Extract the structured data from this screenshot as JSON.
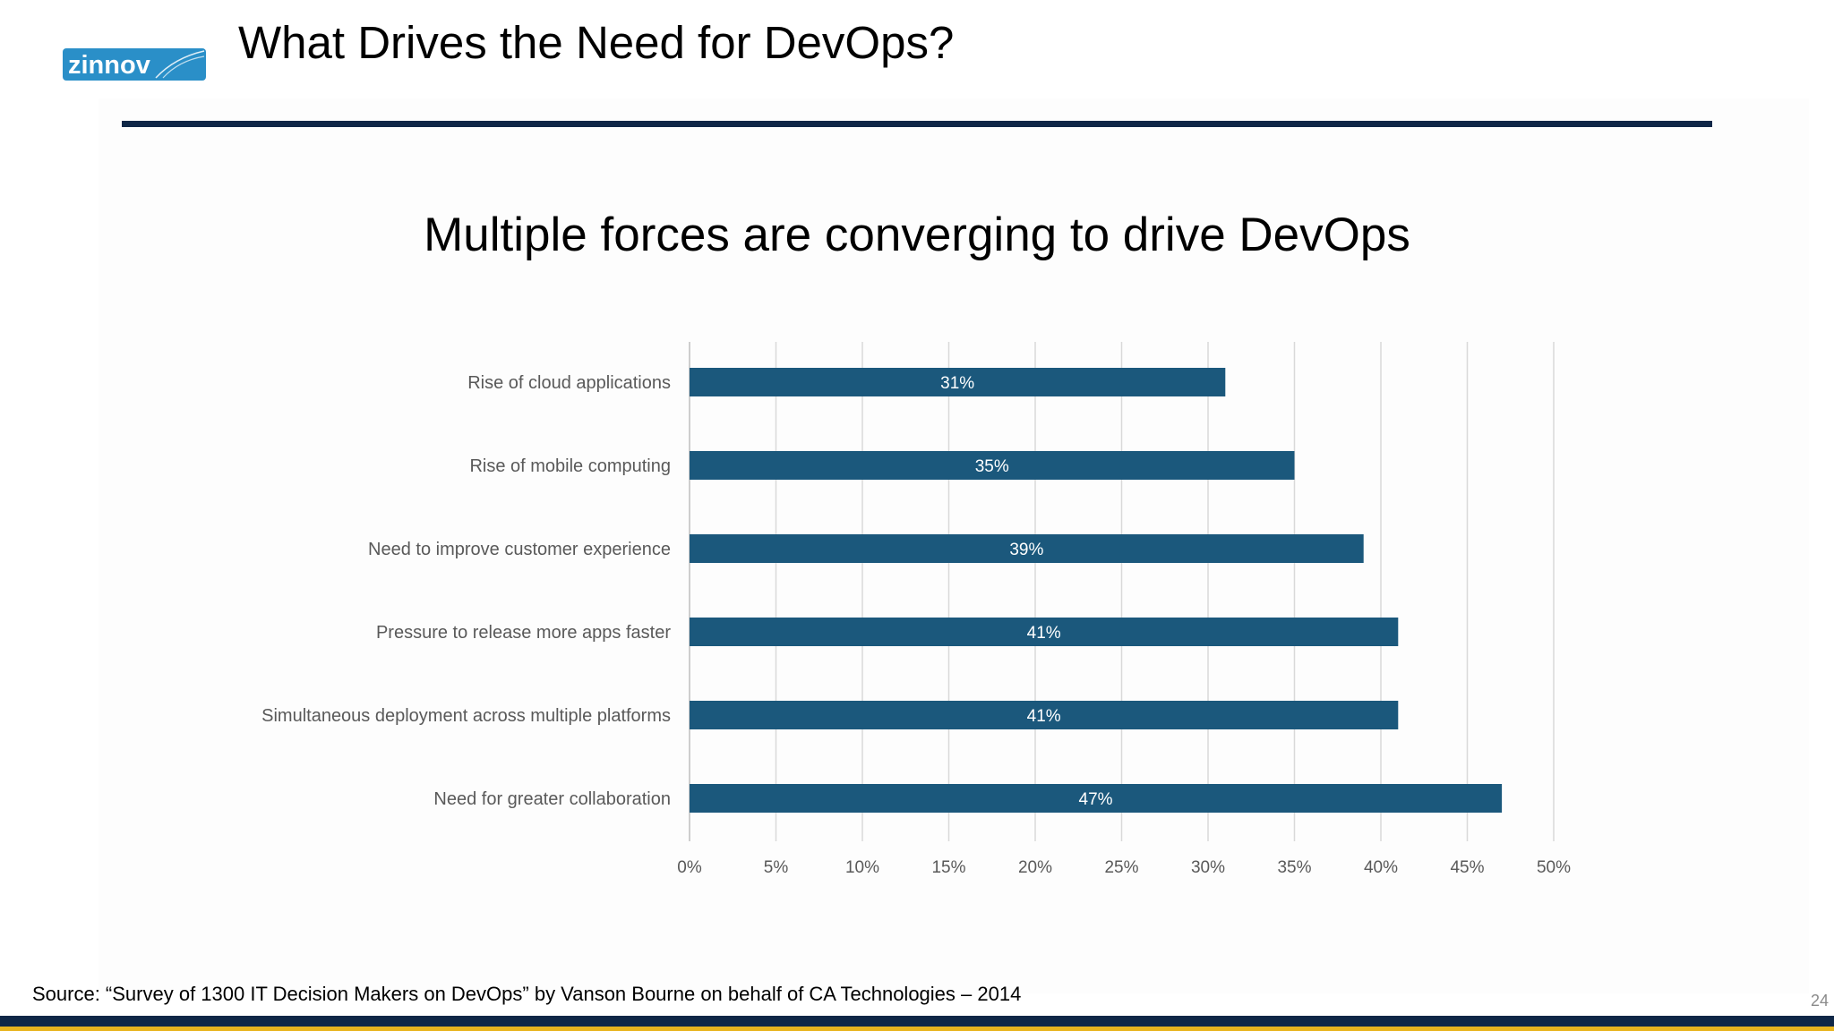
{
  "slide": {
    "logo_text": "zinnov",
    "title": "What Drives the Need for DevOps?",
    "source": "Source: “Survey of 1300 IT Decision Makers on DevOps” by Vanson Bourne on behalf of CA Technologies – 2014",
    "page_number": "24"
  },
  "colors": {
    "bar": "#1b587c",
    "title_rule": "#0f2747",
    "footer_accent": "#e8b41e",
    "logo": "#2a8fc8"
  },
  "chart_data": {
    "type": "bar",
    "orientation": "horizontal",
    "title": "Multiple forces are converging to drive DevOps",
    "categories": [
      "Rise of cloud applications",
      "Rise of mobile computing",
      "Need to improve customer experience",
      "Pressure to release more apps faster",
      "Simultaneous deployment across multiple platforms",
      "Need for greater collaboration"
    ],
    "values": [
      31,
      35,
      39,
      41,
      41,
      47
    ],
    "data_labels": [
      "31%",
      "35%",
      "39%",
      "41%",
      "41%",
      "47%"
    ],
    "xlim": [
      0,
      50
    ],
    "x_ticks": [
      0,
      5,
      10,
      15,
      20,
      25,
      30,
      35,
      40,
      45,
      50
    ],
    "x_tick_labels": [
      "0%",
      "5%",
      "10%",
      "15%",
      "20%",
      "25%",
      "30%",
      "35%",
      "40%",
      "45%",
      "50%"
    ],
    "grid": "vertical",
    "legend": "none",
    "xlabel": "",
    "ylabel": ""
  }
}
